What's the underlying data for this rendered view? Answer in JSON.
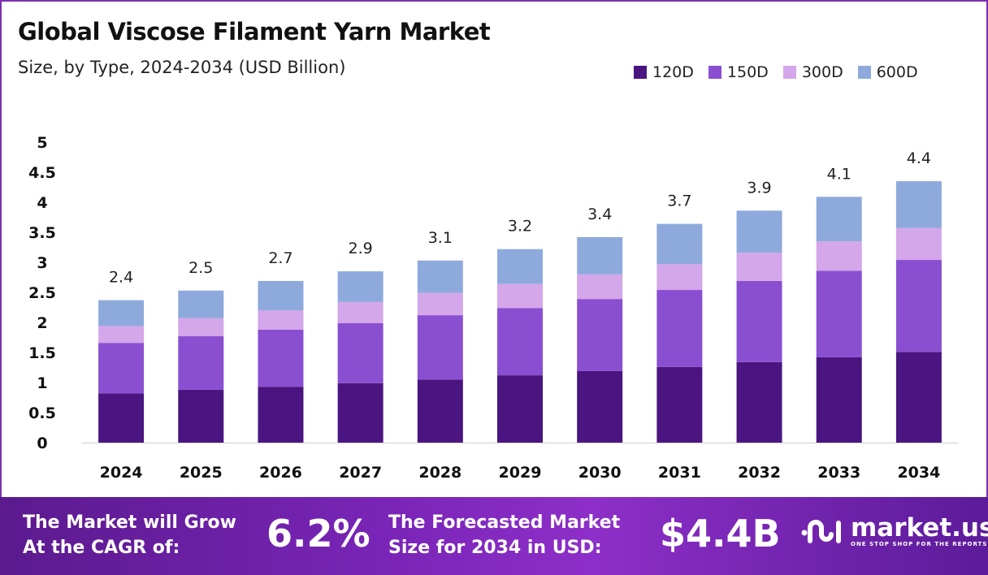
{
  "title": "Global Viscose Filament Yarn Market",
  "subtitle": "Size, by Type, 2024-2034 (USD Billion)",
  "chart_data": {
    "type": "bar",
    "stacked": true,
    "categories": [
      "2024",
      "2025",
      "2026",
      "2027",
      "2028",
      "2029",
      "2030",
      "2031",
      "2032",
      "2033",
      "2034"
    ],
    "series": [
      {
        "name": "120D",
        "color": "#4a1580",
        "values": [
          0.82,
          0.88,
          0.93,
          0.99,
          1.05,
          1.12,
          1.19,
          1.26,
          1.34,
          1.42,
          1.51
        ]
      },
      {
        "name": "150D",
        "color": "#8a4fd0",
        "values": [
          0.84,
          0.89,
          0.95,
          1.0,
          1.07,
          1.12,
          1.2,
          1.28,
          1.35,
          1.44,
          1.53
        ]
      },
      {
        "name": "300D",
        "color": "#d4a6ea",
        "values": [
          0.28,
          0.3,
          0.32,
          0.35,
          0.37,
          0.4,
          0.41,
          0.43,
          0.47,
          0.49,
          0.53
        ]
      },
      {
        "name": "600D",
        "color": "#8eaadc",
        "values": [
          0.43,
          0.46,
          0.49,
          0.51,
          0.54,
          0.58,
          0.62,
          0.67,
          0.7,
          0.74,
          0.78
        ]
      }
    ],
    "totals": [
      "2.4",
      "2.5",
      "2.7",
      "2.9",
      "3.1",
      "3.2",
      "3.4",
      "3.7",
      "3.9",
      "4.1",
      "4.4"
    ],
    "yticks": [
      "0",
      "0.5",
      "1",
      "1.5",
      "2",
      "2.5",
      "3",
      "3.5",
      "4",
      "4.5",
      "5"
    ],
    "ylim": [
      0,
      5
    ],
    "grid": false,
    "legend": "top-right"
  },
  "footer": {
    "cagr_label_1": "The Market will Grow",
    "cagr_label_2": "At the CAGR of:",
    "cagr_value": "6.2%",
    "forecast_label_1": "The Forecasted Market",
    "forecast_label_2": "Size for 2034 in USD:",
    "forecast_value": "$4.4B",
    "logo_name": "market.us",
    "logo_tagline": "ONE STOP SHOP FOR THE REPORTS"
  }
}
